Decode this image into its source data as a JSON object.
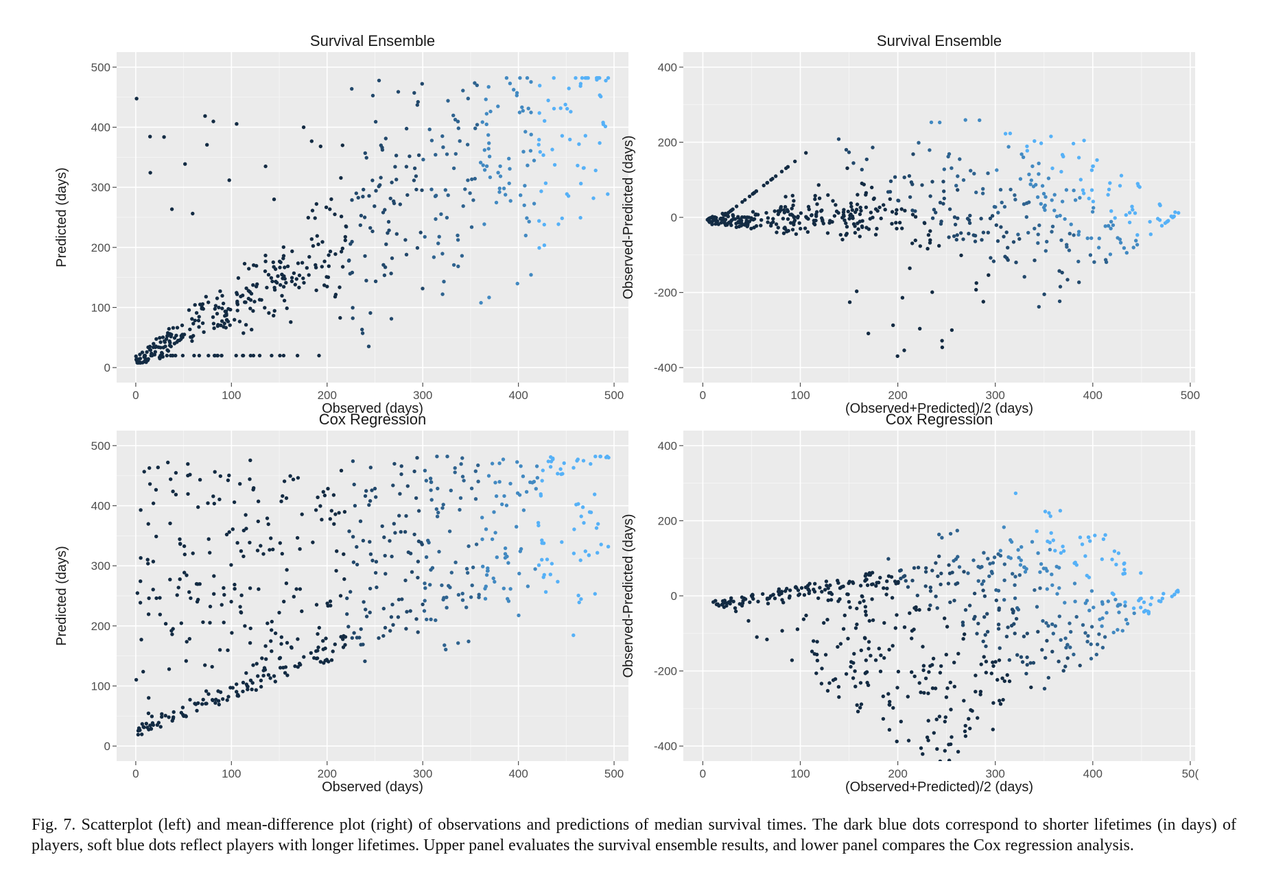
{
  "caption": "Fig. 7.  Scatterplot (left) and mean-difference plot (right) of observations and predictions of median survival times. The dark blue dots correspond to shorter lifetimes (in days) of players, soft blue dots reflect players with longer lifetimes. Upper panel evaluates the survival ensemble results, and lower panel compares the Cox regression analysis.",
  "colors": {
    "short_lifetime": "#132b43",
    "long_lifetime": "#56b1f7",
    "panel_background": "#ebebeb"
  },
  "chart_data": [
    {
      "type": "scatter",
      "title": "Survival Ensemble",
      "xlabel": "Observed (days)",
      "ylabel": "Predicted (days)",
      "xlim": [
        -20,
        515
      ],
      "ylim": [
        -25,
        525
      ],
      "xticks": [
        0,
        100,
        200,
        300,
        400,
        500
      ],
      "yticks": [
        0,
        100,
        200,
        300,
        400,
        500
      ],
      "grid": true,
      "generator": {
        "kind": "scatter",
        "variant": "ensemble",
        "n": 560,
        "seed": 11
      }
    },
    {
      "type": "scatter",
      "title": "Survival Ensemble",
      "xlabel": "(Observed+Predicted)/2  (days)",
      "ylabel": "Observed-Predicted  (days)",
      "xlim": [
        -20,
        505
      ],
      "ylim": [
        -440,
        440
      ],
      "xticks": [
        0,
        100,
        200,
        300,
        400,
        500
      ],
      "yticks": [
        -400,
        -200,
        0,
        200,
        400
      ],
      "grid": true,
      "generator": {
        "kind": "md",
        "variant": "ensemble",
        "n": 560,
        "seed": 11
      }
    },
    {
      "type": "scatter",
      "title": "Cox Regression",
      "xlabel": "Observed (days)",
      "ylabel": "Predicted (days)",
      "xlim": [
        -20,
        515
      ],
      "ylim": [
        -25,
        525
      ],
      "xticks": [
        0,
        100,
        200,
        300,
        400,
        500
      ],
      "yticks": [
        0,
        100,
        200,
        300,
        400,
        500
      ],
      "grid": true,
      "generator": {
        "kind": "scatter",
        "variant": "cox",
        "n": 600,
        "seed": 29
      }
    },
    {
      "type": "scatter",
      "title": "Cox Regression",
      "xlabel": "(Observed+Predicted)/2  (days)",
      "ylabel": "Observed-Predicted  (days)",
      "xlim": [
        -20,
        505
      ],
      "ylim": [
        -440,
        440
      ],
      "xticks": [
        0,
        100,
        200,
        300,
        400,
        "50("
      ],
      "yticks": [
        -400,
        -200,
        0,
        200,
        400
      ],
      "grid": true,
      "generator": {
        "kind": "md",
        "variant": "cox",
        "n": 600,
        "seed": 29
      }
    }
  ]
}
